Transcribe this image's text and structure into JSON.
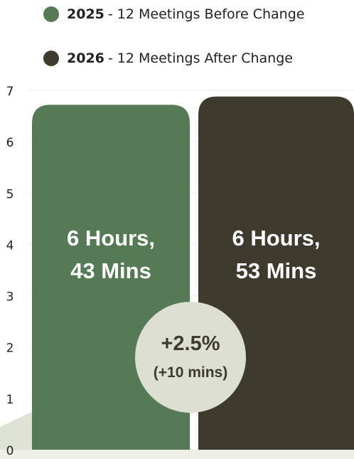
{
  "chart_data": {
    "type": "bar",
    "categories": [
      "2025",
      "2026"
    ],
    "series": [
      {
        "name": "2025",
        "description": "- 12 Meetings Before Change",
        "color": "#567a55"
      },
      {
        "name": "2026",
        "description": "- 12 Meetings After Change",
        "color": "#3e3a2d"
      }
    ],
    "values": [
      6.72,
      6.88
    ],
    "value_labels": [
      "6 Hours, 43 Mins",
      "6 Hours, 53 Mins"
    ],
    "annotation": {
      "text": "+2.5%",
      "subtext": "(+10 mins)"
    },
    "ylim": [
      0,
      7
    ],
    "yticks": [
      0,
      1,
      2,
      3,
      4,
      5,
      6,
      7
    ],
    "grid": true
  }
}
